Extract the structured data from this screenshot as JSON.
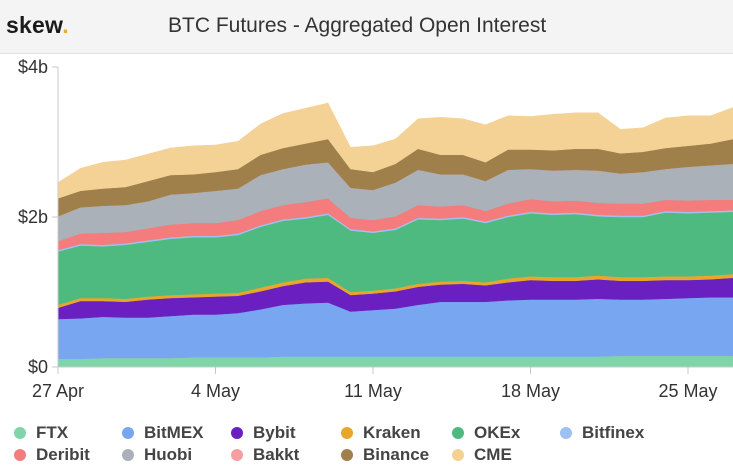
{
  "brand": {
    "name": "skew",
    "dot": ".",
    "dot_color": "#f0a830"
  },
  "chart_data": {
    "type": "area",
    "stacked": true,
    "title": "BTC Futures - Aggregated Open Interest",
    "y_unit": "USD",
    "ylim": [
      0,
      4000000000
    ],
    "y_ticks": [
      {
        "value": 0,
        "label": "$0"
      },
      {
        "value": 2000000000,
        "label": "$2b"
      },
      {
        "value": 4000000000,
        "label": "$4b"
      }
    ],
    "x_ticks": [
      {
        "date": "2020-04-27",
        "label": "27 Apr"
      },
      {
        "date": "2020-05-04",
        "label": "4 May"
      },
      {
        "date": "2020-05-11",
        "label": "11 May"
      },
      {
        "date": "2020-05-18",
        "label": "18 May"
      },
      {
        "date": "2020-05-25",
        "label": "25 May"
      }
    ],
    "x": [
      "2020-04-27",
      "2020-04-28",
      "2020-04-29",
      "2020-04-30",
      "2020-05-01",
      "2020-05-02",
      "2020-05-03",
      "2020-05-04",
      "2020-05-05",
      "2020-05-06",
      "2020-05-07",
      "2020-05-08",
      "2020-05-09",
      "2020-05-10",
      "2020-05-11",
      "2020-05-12",
      "2020-05-13",
      "2020-05-14",
      "2020-05-15",
      "2020-05-16",
      "2020-05-17",
      "2020-05-18",
      "2020-05-19",
      "2020-05-20",
      "2020-05-21",
      "2020-05-22",
      "2020-05-23",
      "2020-05-24",
      "2020-05-25",
      "2020-05-26",
      "2020-05-27"
    ],
    "grid": false,
    "legend_position": "bottom",
    "series": [
      {
        "name": "FTX",
        "color": "#7fd4a8",
        "values": [
          0.11,
          0.11,
          0.12,
          0.12,
          0.12,
          0.12,
          0.13,
          0.13,
          0.13,
          0.13,
          0.14,
          0.14,
          0.14,
          0.14,
          0.14,
          0.14,
          0.14,
          0.14,
          0.14,
          0.14,
          0.14,
          0.14,
          0.14,
          0.14,
          0.14,
          0.15,
          0.15,
          0.15,
          0.15,
          0.15,
          0.15
        ]
      },
      {
        "name": "BitMEX",
        "color": "#78a6f0",
        "values": [
          0.53,
          0.54,
          0.55,
          0.54,
          0.54,
          0.56,
          0.57,
          0.57,
          0.59,
          0.64,
          0.69,
          0.71,
          0.72,
          0.6,
          0.62,
          0.64,
          0.69,
          0.73,
          0.73,
          0.73,
          0.75,
          0.76,
          0.76,
          0.76,
          0.77,
          0.75,
          0.75,
          0.76,
          0.77,
          0.78,
          0.78
        ]
      },
      {
        "name": "Bybit",
        "color": "#6a1fc0",
        "values": [
          0.15,
          0.23,
          0.21,
          0.21,
          0.24,
          0.24,
          0.23,
          0.24,
          0.23,
          0.24,
          0.25,
          0.28,
          0.28,
          0.22,
          0.22,
          0.23,
          0.24,
          0.23,
          0.24,
          0.22,
          0.24,
          0.26,
          0.25,
          0.25,
          0.26,
          0.25,
          0.25,
          0.25,
          0.24,
          0.24,
          0.26
        ]
      },
      {
        "name": "Kraken",
        "color": "#e8a62c",
        "values": [
          0.04,
          0.04,
          0.04,
          0.04,
          0.04,
          0.04,
          0.04,
          0.04,
          0.04,
          0.05,
          0.05,
          0.05,
          0.05,
          0.04,
          0.04,
          0.04,
          0.04,
          0.04,
          0.04,
          0.04,
          0.05,
          0.05,
          0.05,
          0.05,
          0.05,
          0.05,
          0.05,
          0.05,
          0.05,
          0.05,
          0.05
        ]
      },
      {
        "name": "OKEx",
        "color": "#4fba7f",
        "values": [
          0.71,
          0.7,
          0.69,
          0.72,
          0.73,
          0.75,
          0.76,
          0.75,
          0.77,
          0.81,
          0.82,
          0.8,
          0.84,
          0.82,
          0.77,
          0.78,
          0.86,
          0.82,
          0.83,
          0.79,
          0.82,
          0.84,
          0.83,
          0.84,
          0.79,
          0.8,
          0.8,
          0.85,
          0.84,
          0.84,
          0.83
        ]
      },
      {
        "name": "Bitfinex",
        "color": "#9ec1f4",
        "values": [
          0.02,
          0.02,
          0.02,
          0.02,
          0.02,
          0.02,
          0.02,
          0.02,
          0.02,
          0.02,
          0.02,
          0.02,
          0.02,
          0.02,
          0.02,
          0.02,
          0.02,
          0.02,
          0.02,
          0.02,
          0.02,
          0.02,
          0.02,
          0.02,
          0.02,
          0.02,
          0.02,
          0.02,
          0.02,
          0.02,
          0.02
        ]
      },
      {
        "name": "Deribit",
        "color": "#f47c7c",
        "values": [
          0.12,
          0.14,
          0.16,
          0.15,
          0.16,
          0.17,
          0.17,
          0.17,
          0.18,
          0.19,
          0.19,
          0.2,
          0.2,
          0.15,
          0.15,
          0.16,
          0.17,
          0.16,
          0.16,
          0.14,
          0.16,
          0.17,
          0.16,
          0.16,
          0.16,
          0.16,
          0.16,
          0.15,
          0.15,
          0.15,
          0.14
        ]
      },
      {
        "name": "Huobi",
        "color": "#aab1b8",
        "values": [
          0.33,
          0.35,
          0.36,
          0.36,
          0.36,
          0.4,
          0.4,
          0.43,
          0.42,
          0.48,
          0.48,
          0.5,
          0.48,
          0.4,
          0.4,
          0.45,
          0.47,
          0.43,
          0.41,
          0.4,
          0.45,
          0.4,
          0.41,
          0.41,
          0.43,
          0.4,
          0.42,
          0.41,
          0.45,
          0.46,
          0.48
        ]
      },
      {
        "name": "Bakkt",
        "color": "#f4a0a0",
        "values": [
          0.0,
          0.0,
          0.0,
          0.0,
          0.0,
          0.0,
          0.0,
          0.0,
          0.0,
          0.0,
          0.0,
          0.0,
          0.0,
          0.0,
          0.0,
          0.0,
          0.0,
          0.0,
          0.0,
          0.0,
          0.0,
          0.0,
          0.0,
          0.0,
          0.0,
          0.0,
          0.0,
          0.0,
          0.0,
          0.0,
          0.0
        ]
      },
      {
        "name": "Binance",
        "color": "#a0804a",
        "values": [
          0.24,
          0.22,
          0.23,
          0.24,
          0.27,
          0.26,
          0.25,
          0.25,
          0.26,
          0.27,
          0.28,
          0.28,
          0.31,
          0.25,
          0.24,
          0.25,
          0.28,
          0.26,
          0.26,
          0.25,
          0.27,
          0.26,
          0.27,
          0.28,
          0.29,
          0.27,
          0.27,
          0.28,
          0.28,
          0.29,
          0.33
        ]
      },
      {
        "name": "CME",
        "color": "#f4d296",
        "values": [
          0.21,
          0.3,
          0.35,
          0.36,
          0.36,
          0.36,
          0.38,
          0.36,
          0.37,
          0.41,
          0.46,
          0.47,
          0.48,
          0.29,
          0.35,
          0.33,
          0.4,
          0.5,
          0.48,
          0.5,
          0.45,
          0.44,
          0.48,
          0.48,
          0.48,
          0.32,
          0.32,
          0.4,
          0.4,
          0.37,
          0.42
        ]
      }
    ]
  }
}
